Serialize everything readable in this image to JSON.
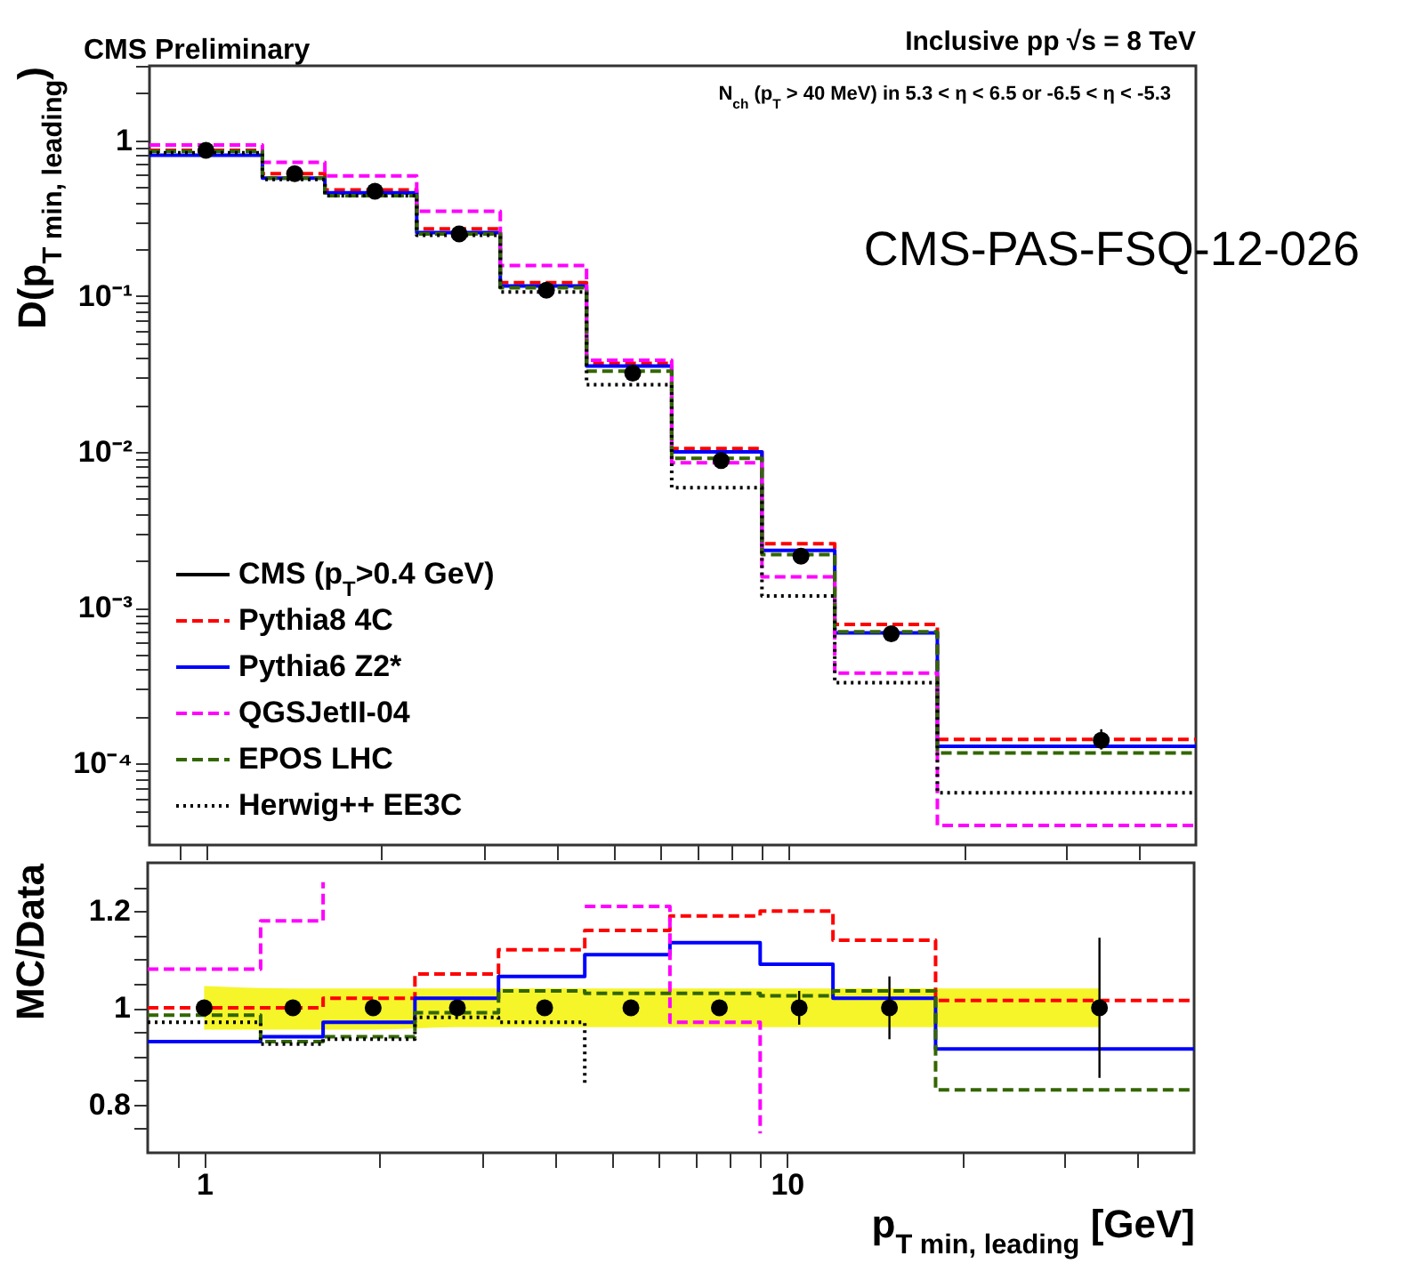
{
  "chart_data": [
    {
      "type": "step",
      "title": "CMS Preliminary",
      "ylabel": "D(p$_{T min, leading}$)",
      "annotations": [
        "Inclusive pp √s = 8 TeV",
        "N$_{ch}$ (p$_{T}$ > 40 MeV) in 5.3 < η < 6.5 or -6.5 < η < -5.3",
        "CMS-PAS-FSQ-12-026"
      ],
      "log": "xy",
      "xlim": [
        0.8,
        50
      ],
      "ylim": [
        3e-05,
        3
      ],
      "xticks": [
        {
          "value": 0.9,
          "label": null
        },
        {
          "value": 1,
          "label": null
        },
        {
          "value": 2,
          "label": null
        },
        {
          "value": 3,
          "label": null
        },
        {
          "value": 4,
          "label": null
        },
        {
          "value": 5,
          "label": null
        },
        {
          "value": 6,
          "label": null
        },
        {
          "value": 7,
          "label": null
        },
        {
          "value": 8,
          "label": null
        },
        {
          "value": 9,
          "label": null
        },
        {
          "value": 10,
          "label": null
        },
        {
          "value": 20,
          "label": null
        },
        {
          "value": 30,
          "label": null
        },
        {
          "value": 40,
          "label": null
        }
      ],
      "yticks": [
        {
          "value": 4e-05,
          "label": null
        },
        {
          "value": 5e-05,
          "label": null
        },
        {
          "value": 6e-05,
          "label": null
        },
        {
          "value": 7e-05,
          "label": null
        },
        {
          "value": 8e-05,
          "label": null
        },
        {
          "value": 9e-05,
          "label": null
        },
        {
          "value": 0.0001,
          "label": "10⁻⁴"
        },
        {
          "value": 0.0002,
          "label": null
        },
        {
          "value": 0.0003,
          "label": null
        },
        {
          "value": 0.0004,
          "label": null
        },
        {
          "value": 0.0005,
          "label": null
        },
        {
          "value": 0.0006,
          "label": null
        },
        {
          "value": 0.0007,
          "label": null
        },
        {
          "value": 0.0008,
          "label": null
        },
        {
          "value": 0.0009,
          "label": null
        },
        {
          "value": 0.001,
          "label": "10⁻³"
        },
        {
          "value": 0.002,
          "label": null
        },
        {
          "value": 0.003,
          "label": null
        },
        {
          "value": 0.004,
          "label": null
        },
        {
          "value": 0.005,
          "label": null
        },
        {
          "value": 0.006,
          "label": null
        },
        {
          "value": 0.007,
          "label": null
        },
        {
          "value": 0.008,
          "label": null
        },
        {
          "value": 0.009,
          "label": null
        },
        {
          "value": 0.01,
          "label": "10⁻²"
        },
        {
          "value": 0.02,
          "label": null
        },
        {
          "value": 0.03,
          "label": null
        },
        {
          "value": 0.04,
          "label": null
        },
        {
          "value": 0.05,
          "label": null
        },
        {
          "value": 0.06,
          "label": null
        },
        {
          "value": 0.07,
          "label": null
        },
        {
          "value": 0.08,
          "label": null
        },
        {
          "value": 0.09,
          "label": null
        },
        {
          "value": 0.1,
          "label": "10⁻¹"
        },
        {
          "value": 0.2,
          "label": null
        },
        {
          "value": 0.3,
          "label": null
        },
        {
          "value": 0.4,
          "label": null
        },
        {
          "value": 0.5,
          "label": null
        },
        {
          "value": 0.6,
          "label": null
        },
        {
          "value": 0.7,
          "label": null
        },
        {
          "value": 0.8,
          "label": null
        },
        {
          "value": 0.9,
          "label": null
        },
        1,
        {
          "value": 2,
          "label": null
        },
        {
          "value": 3,
          "label": null
        }
      ],
      "tick_labels": "y",
      "legend": "bottom left",
      "x": [
        0.8,
        1.25,
        1.6,
        2.3,
        3.2,
        4.5,
        6.3,
        9,
        12,
        18,
        50
      ],
      "series": [
        {
          "name": "CMS (p$_{T}$>0.4 GeV)",
          "type": "scatter",
          "marker": "circle",
          "color": "#000000",
          "line_style": "solid",
          "x": [
            1.0,
            1.42,
            1.95,
            2.72,
            3.84,
            5.4,
            7.66,
            10.5,
            15,
            34.4
          ],
          "values": [
            0.86,
            0.61,
            0.47,
            0.25,
            0.109,
            0.032,
            0.0088,
            0.00214,
            0.00068,
            0.000141
          ],
          "errors": [
            null,
            null,
            null,
            null,
            null,
            null,
            null,
            null,
            null,
            [
              0.000123,
              0.000166
            ]
          ]
        },
        {
          "name": "Pythia8 4C",
          "color": "#ff0000",
          "line_style": "dashed",
          "values": [
            0.86,
            0.61,
            0.48,
            0.27,
            0.122,
            0.037,
            0.0105,
            0.00257,
            0.00078,
            0.000143,
            0.000143
          ]
        },
        {
          "name": "Pythia6 Z2*",
          "color": "#0000ff",
          "line_style": "solid",
          "values": [
            0.8,
            0.57,
            0.46,
            0.255,
            0.116,
            0.0355,
            0.01,
            0.00233,
            0.00069,
            0.000129,
            0.000129
          ]
        },
        {
          "name": "QGSJetII-04",
          "color": "#ff00ff",
          "line_style": "dashed",
          "values": [
            0.93,
            0.72,
            0.59,
            0.35,
            0.157,
            0.0387,
            0.0085,
            0.00158,
            0.00038,
            4e-05,
            4e-05
          ]
        },
        {
          "name": "EPOS LHC",
          "color": "#336600",
          "line_style": "dashed",
          "values": [
            0.85,
            0.57,
            0.44,
            0.25,
            0.113,
            0.033,
            0.0091,
            0.00219,
            0.0007,
            0.000117,
            0.000117
          ]
        },
        {
          "name": "Herwig++ EE3C",
          "color": "#000000",
          "line_style": "dotted",
          "values": [
            0.83,
            0.56,
            0.44,
            0.245,
            0.106,
            0.027,
            0.0059,
            0.00119,
            0.00033,
            6.5e-05,
            6.5e-05
          ]
        }
      ]
    },
    {
      "type": "step",
      "xlabel": "p$_{T min, leading}$ [GeV]",
      "ylabel": "MC/Data",
      "log": "x",
      "xlim": [
        0.8,
        50
      ],
      "ylim": [
        0.7,
        1.3
      ],
      "xticks": [
        {
          "value": 0.9,
          "label": null
        },
        1,
        {
          "value": 2,
          "label": null
        },
        {
          "value": 3,
          "label": null
        },
        {
          "value": 4,
          "label": null
        },
        {
          "value": 5,
          "label": null
        },
        {
          "value": 6,
          "label": null
        },
        {
          "value": 7,
          "label": null
        },
        {
          "value": 8,
          "label": null
        },
        {
          "value": 9,
          "label": null
        },
        10,
        {
          "value": 20,
          "label": null
        },
        {
          "value": 30,
          "label": null
        },
        {
          "value": 40,
          "label": null
        }
      ],
      "yticks": [
        {
          "value": 0.75,
          "label": null
        },
        0.8,
        {
          "value": 0.85,
          "label": null
        },
        {
          "value": 0.9,
          "label": null
        },
        {
          "value": 0.95,
          "label": null
        },
        1,
        {
          "value": 1.05,
          "label": null
        },
        {
          "value": 1.1,
          "label": null
        },
        {
          "value": 1.15,
          "label": null
        },
        1.2,
        {
          "value": 1.25,
          "label": null
        }
      ],
      "x": [
        0.8,
        1.25,
        1.6,
        2.3,
        3.2,
        4.5,
        6.3,
        9,
        12,
        18,
        50
      ],
      "series": [
        {
          "type": "scatter",
          "marker": "circle",
          "color": "#000000",
          "x": [
            1.0,
            1.42,
            1.95,
            2.72,
            3.84,
            5.4,
            7.66,
            10.5,
            15,
            34.4
          ],
          "values": [
            1,
            1,
            1,
            1,
            1,
            1,
            1,
            1,
            1,
            1
          ],
          "errors": [
            null,
            null,
            null,
            null,
            null,
            null,
            null,
            0.035,
            0.065,
            0.145
          ],
          "lower": [
            0.955,
            0.955,
            0.955,
            0.96,
            0.96,
            0.96,
            0.96,
            0.96,
            0.96,
            0.96
          ],
          "upper": [
            1.045,
            1.04,
            1.04,
            1.04,
            1.04,
            1.04,
            1.04,
            1.04,
            1.04,
            1.04
          ]
        },
        {
          "color": "#ff0000",
          "line_style": "dashed",
          "values": [
            1.0,
            1.0,
            1.02,
            1.07,
            1.12,
            1.16,
            1.19,
            1.2,
            1.14,
            1.015,
            1.015
          ]
        },
        {
          "color": "#0000ff",
          "line_style": "solid",
          "values": [
            0.93,
            0.94,
            0.97,
            1.02,
            1.065,
            1.11,
            1.135,
            1.09,
            1.02,
            0.915,
            0.915
          ]
        },
        {
          "color": "#ff00ff",
          "line_style": "dashed",
          "values": [
            1.08,
            1.18,
            1.26,
            null,
            null,
            1.21,
            0.97,
            0.74,
            null,
            null,
            null
          ]
        },
        {
          "color": "#336600",
          "line_style": "dashed",
          "values": [
            0.985,
            0.93,
            0.94,
            0.99,
            1.035,
            1.03,
            1.03,
            1.025,
            1.035,
            0.83,
            0.83
          ]
        },
        {
          "color": "#000000",
          "line_style": "dotted",
          "values": [
            0.97,
            0.925,
            0.935,
            0.98,
            0.97,
            0.84,
            null,
            null,
            null,
            null,
            null
          ]
        }
      ]
    }
  ]
}
